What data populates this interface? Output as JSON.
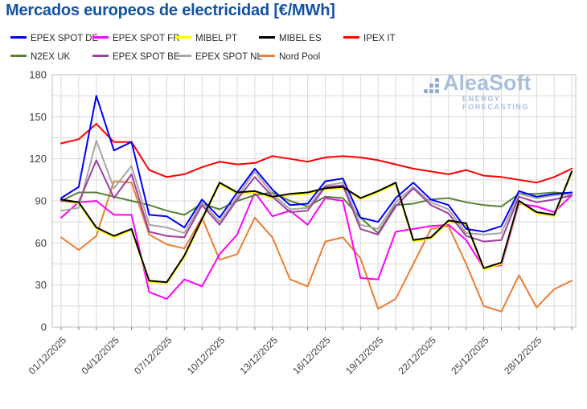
{
  "title": "Mercados europeos de electricidad [€/MWh]",
  "title_color": "#1253A4",
  "watermark": {
    "name": "AleaSoft",
    "subtitle": "ENERGY FORECASTING"
  },
  "chart_data": {
    "type": "line",
    "title": "Mercados europeos de electricidad [€/MWh]",
    "xlabel": "",
    "ylabel": "",
    "ylim": [
      0,
      180
    ],
    "grid": true,
    "legend_position": "top",
    "y_tick_labels": [
      "0",
      "30",
      "60",
      "90",
      "120",
      "150",
      "180"
    ],
    "x_tick_labels": [
      "01/12/2025",
      "04/12/2025",
      "07/12/2025",
      "10/12/2025",
      "13/12/2025",
      "16/12/2025",
      "19/12/2025",
      "22/12/2025",
      "25/12/2025",
      "28/12/2025"
    ],
    "categories": [
      "01/12/2025",
      "02/12/2025",
      "03/12/2025",
      "04/12/2025",
      "05/12/2025",
      "06/12/2025",
      "07/12/2025",
      "08/12/2025",
      "09/12/2025",
      "10/12/2025",
      "11/12/2025",
      "12/12/2025",
      "13/12/2025",
      "14/12/2025",
      "15/12/2025",
      "16/12/2025",
      "17/12/2025",
      "18/12/2025",
      "19/12/2025",
      "20/12/2025",
      "21/12/2025",
      "22/12/2025",
      "23/12/2025",
      "24/12/2025",
      "25/12/2025",
      "26/12/2025",
      "27/12/2025",
      "28/12/2025",
      "29/12/2025",
      "30/12/2025"
    ],
    "series": [
      {
        "name": "EPEX SPOT DE",
        "color": "#0000FF",
        "values": [
          92,
          100,
          165,
          126,
          132,
          80,
          79,
          71,
          91,
          78,
          96,
          113,
          98,
          87,
          88,
          104,
          106,
          78,
          75,
          92,
          103,
          91,
          87,
          70,
          68,
          72,
          97,
          93,
          95,
          96
        ]
      },
      {
        "name": "EPEX SPOT FR",
        "color": "#FF00FF",
        "values": [
          78,
          89,
          90,
          80,
          80,
          25,
          20,
          34,
          29,
          52,
          66,
          96,
          79,
          83,
          73,
          92,
          90,
          35,
          34,
          68,
          70,
          72,
          73,
          62,
          42,
          44,
          88,
          86,
          82,
          94
        ]
      },
      {
        "name": "MIBEL PT",
        "color": "#FFFF00",
        "values": [
          90,
          88,
          70,
          64,
          69,
          32,
          31,
          50,
          76,
          102,
          95,
          96,
          92,
          94,
          95,
          98,
          99,
          91,
          96,
          102,
          61,
          63,
          75,
          73,
          41,
          45,
          89,
          81,
          79,
          110
        ]
      },
      {
        "name": "MIBEL ES",
        "color": "#000000",
        "values": [
          91,
          89,
          71,
          65,
          70,
          33,
          32,
          51,
          77,
          103,
          96,
          97,
          93,
          95,
          96,
          99,
          100,
          92,
          97,
          103,
          62,
          64,
          76,
          74,
          42,
          46,
          90,
          82,
          80,
          111
        ]
      },
      {
        "name": "IPEX IT",
        "color": "#FF0000",
        "values": [
          131,
          134,
          145,
          132,
          132,
          112,
          107,
          109,
          114,
          118,
          116,
          117,
          122,
          120,
          118,
          121,
          122,
          121,
          119,
          116,
          113,
          111,
          109,
          112,
          108,
          107,
          105,
          103,
          107,
          113
        ]
      },
      {
        "name": "N2EX UK",
        "color": "#548235",
        "values": [
          90,
          96,
          96,
          93,
          90,
          87,
          83,
          80,
          88,
          84,
          90,
          94,
          96,
          90,
          86,
          93,
          92,
          78,
          67,
          87,
          88,
          91,
          92,
          89,
          87,
          86,
          95,
          95,
          96,
          95
        ]
      },
      {
        "name": "EPEX SPOT BE",
        "color": "#A040A0",
        "values": [
          90,
          89,
          119,
          92,
          109,
          68,
          65,
          64,
          87,
          73,
          91,
          107,
          93,
          82,
          83,
          100,
          101,
          70,
          66,
          86,
          99,
          87,
          81,
          65,
          61,
          62,
          93,
          89,
          91,
          94
        ]
      },
      {
        "name": "EPEX SPOT NL",
        "color": "#A6A6A6",
        "values": [
          83,
          85,
          133,
          99,
          115,
          73,
          71,
          67,
          89,
          75,
          93,
          111,
          95,
          84,
          85,
          101,
          103,
          73,
          70,
          89,
          100,
          89,
          84,
          67,
          66,
          67,
          95,
          92,
          94,
          95
        ]
      },
      {
        "name": "Nord Pool",
        "color": "#ED7D31",
        "values": [
          64,
          55,
          65,
          104,
          103,
          66,
          59,
          56,
          78,
          48,
          52,
          78,
          64,
          34,
          29,
          61,
          64,
          49,
          13,
          20,
          45,
          70,
          72,
          45,
          15,
          11,
          37,
          14,
          27,
          33
        ]
      }
    ]
  }
}
